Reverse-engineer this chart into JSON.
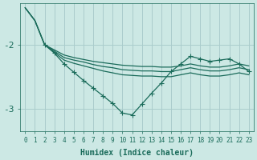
{
  "background_color": "#cce8e4",
  "grid_color": "#aacccc",
  "line_color": "#1a6b5a",
  "xlabel": "Humidex (Indice chaleur)",
  "xlabel_fontsize": 7,
  "tick_fontsize": 5.5,
  "ytick_fontsize": 8,
  "yticks": [
    -3,
    -2
  ],
  "ylim": [
    -3.35,
    -1.35
  ],
  "xlim": [
    -0.5,
    23.5
  ],
  "xticks": [
    0,
    1,
    2,
    3,
    4,
    5,
    6,
    7,
    8,
    9,
    10,
    11,
    12,
    13,
    14,
    15,
    16,
    17,
    18,
    19,
    20,
    21,
    22,
    23
  ],
  "line1_x": [
    0,
    1,
    2,
    3,
    4,
    5,
    6,
    7,
    8,
    9,
    10,
    11,
    12,
    13,
    14,
    15,
    16,
    17,
    18,
    19,
    20,
    21,
    22,
    23
  ],
  "line1_y": [
    -1.42,
    -1.62,
    -2.0,
    -2.08,
    -2.16,
    -2.2,
    -2.23,
    -2.26,
    -2.28,
    -2.3,
    -2.32,
    -2.33,
    -2.34,
    -2.34,
    -2.35,
    -2.35,
    -2.33,
    -2.3,
    -2.33,
    -2.35,
    -2.35,
    -2.33,
    -2.3,
    -2.33
  ],
  "line2_x": [
    0,
    1,
    2,
    3,
    4,
    5,
    6,
    7,
    8,
    9,
    10,
    11,
    12,
    13,
    14,
    15,
    16,
    17,
    18,
    19,
    20,
    21,
    22,
    23
  ],
  "line2_y": [
    -1.42,
    -1.62,
    -2.0,
    -2.1,
    -2.2,
    -2.24,
    -2.27,
    -2.31,
    -2.34,
    -2.36,
    -2.39,
    -2.4,
    -2.41,
    -2.41,
    -2.42,
    -2.42,
    -2.39,
    -2.36,
    -2.39,
    -2.41,
    -2.41,
    -2.39,
    -2.36,
    -2.39
  ],
  "line3_x": [
    0,
    1,
    2,
    3,
    4,
    5,
    6,
    7,
    8,
    9,
    10,
    11,
    12,
    13,
    14,
    15,
    16,
    17,
    18,
    19,
    20,
    21,
    22,
    23
  ],
  "line3_y": [
    -1.42,
    -1.62,
    -2.0,
    -2.12,
    -2.24,
    -2.29,
    -2.33,
    -2.37,
    -2.41,
    -2.44,
    -2.47,
    -2.48,
    -2.49,
    -2.49,
    -2.5,
    -2.5,
    -2.47,
    -2.44,
    -2.47,
    -2.49,
    -2.49,
    -2.47,
    -2.44,
    -2.47
  ],
  "line4_x": [
    2,
    3,
    4,
    5,
    6,
    7,
    8,
    9,
    10,
    11,
    12,
    13,
    14,
    15,
    16,
    17,
    18,
    19,
    20,
    21,
    22,
    23
  ],
  "line4_y": [
    -2.0,
    -2.13,
    -2.3,
    -2.43,
    -2.56,
    -2.68,
    -2.8,
    -2.92,
    -3.07,
    -3.1,
    -2.93,
    -2.76,
    -2.6,
    -2.42,
    -2.3,
    -2.18,
    -2.22,
    -2.26,
    -2.24,
    -2.22,
    -2.3,
    -2.42
  ]
}
